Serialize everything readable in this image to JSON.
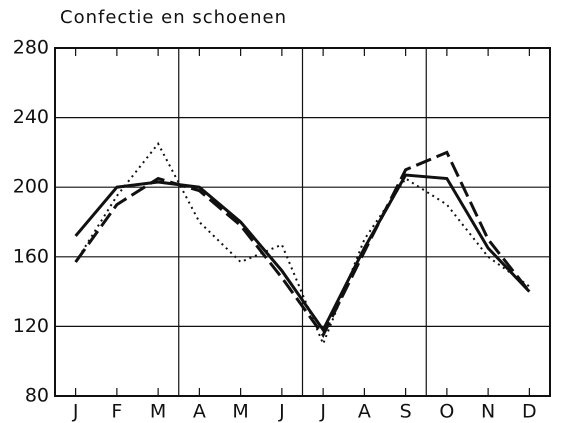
{
  "chart_data": {
    "type": "line",
    "title": "Confectie en schoenen",
    "categories": [
      "J",
      "F",
      "M",
      "A",
      "M",
      "J",
      "J",
      "A",
      "S",
      "O",
      "N",
      "D"
    ],
    "series": [
      {
        "color": "#111111",
        "style": "solid",
        "values": [
          172,
          200,
          203,
          200,
          180,
          152,
          118,
          165,
          207,
          205,
          165,
          140
        ]
      },
      {
        "color": "#111111",
        "style": "dashed",
        "values": [
          157,
          190,
          205,
          198,
          178,
          148,
          115,
          163,
          210,
          220,
          170,
          140
        ]
      },
      {
        "color": "#111111",
        "style": "dotted",
        "values": [
          157,
          195,
          225,
          180,
          157,
          167,
          110,
          170,
          205,
          190,
          160,
          143
        ]
      }
    ],
    "ylim": [
      80,
      280
    ],
    "yticks": [
      80,
      120,
      160,
      200,
      240,
      280
    ],
    "grid": true
  }
}
